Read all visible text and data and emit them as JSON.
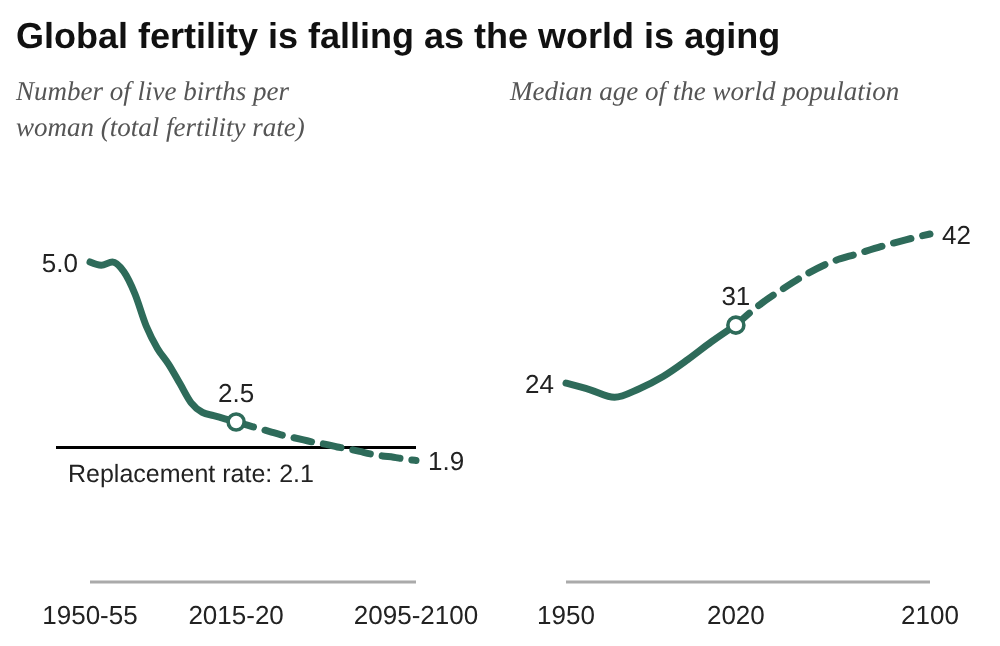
{
  "chart_data": [
    {
      "type": "line",
      "title": "Global fertility is falling as the world is aging",
      "subtitle": "Number of live births per woman (total fertility rate)",
      "categories": [
        "1950-55",
        null,
        null,
        null,
        null,
        null,
        null,
        null,
        null,
        null,
        null,
        null,
        null,
        "2015-20",
        null,
        null,
        null,
        null,
        null,
        null,
        null,
        null,
        null,
        null,
        null,
        null,
        null,
        null,
        null,
        "2095-2100"
      ],
      "series": [
        {
          "color": "#2e6b5a",
          "line_style": "solid",
          "values": [
            5.0,
            4.95,
            5.0,
            4.85,
            4.5,
            4.0,
            3.65,
            3.4,
            3.1,
            2.8,
            2.65,
            2.6,
            2.55,
            2.5,
            null,
            null,
            null,
            null,
            null,
            null,
            null,
            null,
            null,
            null,
            null,
            null,
            null,
            null,
            null,
            null
          ],
          "value_labels": [
            "5.0",
            null,
            null,
            null,
            null,
            null,
            null,
            null,
            null,
            null,
            null,
            null,
            null,
            "2.5",
            null,
            null,
            null,
            null,
            null,
            null,
            null,
            null,
            null,
            null,
            null,
            null,
            null,
            null,
            null,
            null
          ]
        },
        {
          "color": "#2e6b5a",
          "line_style": "dashed",
          "values": [
            null,
            null,
            null,
            null,
            null,
            null,
            null,
            null,
            null,
            null,
            null,
            null,
            null,
            2.5,
            2.45,
            2.4,
            2.35,
            2.3,
            2.26,
            2.22,
            2.18,
            2.15,
            2.11,
            2.08,
            2.04,
            2.0,
            1.97,
            1.95,
            1.92,
            1.9
          ],
          "value_labels": [
            null,
            null,
            null,
            null,
            null,
            null,
            null,
            null,
            null,
            null,
            null,
            null,
            null,
            null,
            null,
            null,
            null,
            null,
            null,
            null,
            null,
            null,
            null,
            null,
            null,
            null,
            null,
            null,
            null,
            "1.9"
          ]
        },
        {
          "type": "scatter",
          "marker": "circle",
          "color": "#2e6b5a",
          "values": [
            null,
            null,
            null,
            null,
            null,
            null,
            null,
            null,
            null,
            null,
            null,
            null,
            null,
            2.5,
            null,
            null,
            null,
            null,
            null,
            null,
            null,
            null,
            null,
            null,
            null,
            null,
            null,
            null,
            null,
            null
          ]
        }
      ],
      "ref_lines": [
        {
          "axis": "y",
          "value": 2.1,
          "label": "Replacement rate: 2.1",
          "color": "#000000"
        }
      ]
    },
    {
      "type": "line",
      "subtitle": "Median age of the world population",
      "xlim": [
        1950,
        2100
      ],
      "xticks": [
        1950,
        2020,
        2100
      ],
      "series": [
        {
          "color": "#2e6b5a",
          "line_style": "solid",
          "x": [
            1950,
            1960,
            1970,
            1980,
            1990,
            2000,
            2010,
            2020
          ],
          "values": [
            24,
            23.2,
            22.3,
            23.3,
            24.8,
            26.8,
            29,
            31
          ],
          "value_labels": [
            "24",
            null,
            null,
            null,
            null,
            null,
            null,
            "31"
          ]
        },
        {
          "color": "#2e6b5a",
          "line_style": "dashed",
          "x": [
            2020,
            2030,
            2040,
            2050,
            2060,
            2070,
            2080,
            2090,
            2100
          ],
          "values": [
            31,
            33.5,
            35.5,
            37.3,
            38.7,
            39.6,
            40.5,
            41.3,
            42
          ],
          "value_labels": [
            null,
            null,
            null,
            null,
            null,
            null,
            null,
            null,
            "42"
          ]
        },
        {
          "type": "scatter",
          "marker": "circle",
          "color": "#2e6b5a",
          "x": [
            2020
          ],
          "values": [
            31
          ]
        }
      ]
    }
  ]
}
